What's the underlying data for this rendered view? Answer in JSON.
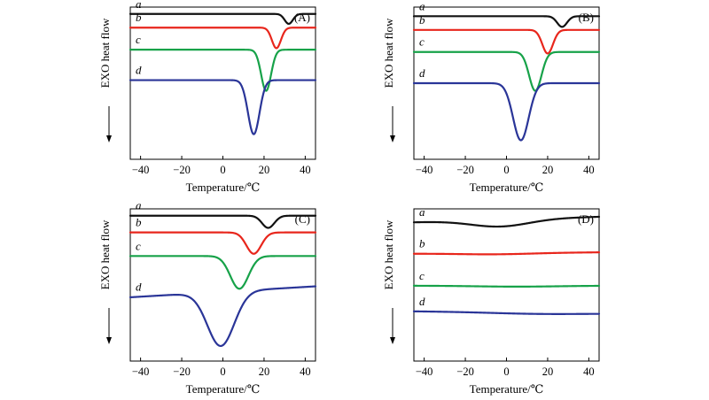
{
  "colors": {
    "a": "#111111",
    "b": "#e8261c",
    "c": "#17a249",
    "d": "#2a3598"
  },
  "chart_data": [
    {
      "type": "line",
      "panel_label": "(A)",
      "xlabel": "Temperature/℃",
      "ylabel": "EXO heat flow",
      "xlim": [
        -45,
        45
      ],
      "xticks": [
        "−40",
        "−20",
        "0",
        "20",
        "40"
      ],
      "xtick_values": [
        -40,
        -20,
        0,
        20,
        40
      ],
      "series": [
        {
          "name": "a",
          "baseline": 0.955,
          "peaks": [
            {
              "center": 32,
              "depth": 0.065,
              "width": 2.0
            }
          ],
          "slope": 0.0
        },
        {
          "name": "b",
          "baseline": 0.865,
          "peaks": [
            {
              "center": 26,
              "depth": 0.135,
              "width": 2.2
            }
          ],
          "slope": 0.0
        },
        {
          "name": "c",
          "baseline": 0.72,
          "peaks": [
            {
              "center": 21,
              "depth": 0.27,
              "width": 2.4
            }
          ],
          "slope": 0.0
        },
        {
          "name": "d",
          "baseline": 0.52,
          "peaks": [
            {
              "center": 15,
              "depth": 0.355,
              "width": 2.8
            }
          ],
          "slope": 0.0
        }
      ]
    },
    {
      "type": "line",
      "panel_label": "(B)",
      "xlabel": "Temperature/℃",
      "ylabel": "EXO heat flow",
      "xlim": [
        -45,
        45
      ],
      "xticks": [
        "−40",
        "−20",
        "0",
        "20",
        "40"
      ],
      "xtick_values": [
        -40,
        -20,
        0,
        20,
        40
      ],
      "series": [
        {
          "name": "a",
          "baseline": 0.94,
          "peaks": [
            {
              "center": 27,
              "depth": 0.07,
              "width": 2.4
            }
          ],
          "slope": 0.0
        },
        {
          "name": "b",
          "baseline": 0.85,
          "peaks": [
            {
              "center": 20,
              "depth": 0.155,
              "width": 2.6
            }
          ],
          "slope": 0.0
        },
        {
          "name": "c",
          "baseline": 0.705,
          "peaks": [
            {
              "center": 14,
              "depth": 0.255,
              "width": 3.0
            }
          ],
          "slope": 0.0
        },
        {
          "name": "d",
          "baseline": 0.5,
          "peaks": [
            {
              "center": 7,
              "depth": 0.375,
              "width": 3.8
            }
          ],
          "slope": 0.0
        }
      ]
    },
    {
      "type": "line",
      "panel_label": "(C)",
      "xlabel": "Temperature/℃",
      "ylabel": "EXO heat flow",
      "xlim": [
        -45,
        45
      ],
      "xticks": [
        "−40",
        "−20",
        "0",
        "20",
        "40"
      ],
      "xtick_values": [
        -40,
        -20,
        0,
        20,
        40
      ],
      "series": [
        {
          "name": "a",
          "baseline": 0.955,
          "peaks": [
            {
              "center": 22,
              "depth": 0.08,
              "width": 3.0
            }
          ],
          "slope": 0.0
        },
        {
          "name": "b",
          "baseline": 0.845,
          "peaks": [
            {
              "center": 15,
              "depth": 0.14,
              "width": 3.6
            }
          ],
          "slope": 0.0
        },
        {
          "name": "c",
          "baseline": 0.69,
          "peaks": [
            {
              "center": 8,
              "depth": 0.215,
              "width": 4.4
            }
          ],
          "slope": 0.0
        },
        {
          "name": "d",
          "baseline": 0.455,
          "peaks": [
            {
              "center": -1,
              "depth": 0.355,
              "width": 6.5
            }
          ],
          "slope": 0.0008
        }
      ]
    },
    {
      "type": "line",
      "panel_label": "(D)",
      "xlabel": "Temperature/℃",
      "ylabel": "EXO heat flow",
      "xlim": [
        -45,
        45
      ],
      "xticks": [
        "−40",
        "−20",
        "0",
        "20",
        "40"
      ],
      "xtick_values": [
        -40,
        -20,
        0,
        20,
        40
      ],
      "series": [
        {
          "name": "a",
          "baseline": 0.93,
          "peaks": [
            {
              "center": -3,
              "depth": 0.045,
              "width": 14.0
            }
          ],
          "slope": 0.0004
        },
        {
          "name": "b",
          "baseline": 0.71,
          "peaks": [
            {
              "center": -5,
              "depth": 0.008,
              "width": 18.0
            }
          ],
          "slope": 0.0001
        },
        {
          "name": "c",
          "baseline": 0.495,
          "peaks": [
            {
              "center": 5,
              "depth": 0.006,
              "width": 20.0
            }
          ],
          "slope": 0.0
        },
        {
          "name": "d",
          "baseline": 0.32,
          "peaks": [
            {
              "center": 15,
              "depth": 0.008,
              "width": 22.0
            }
          ],
          "slope": -0.00015
        }
      ]
    }
  ]
}
